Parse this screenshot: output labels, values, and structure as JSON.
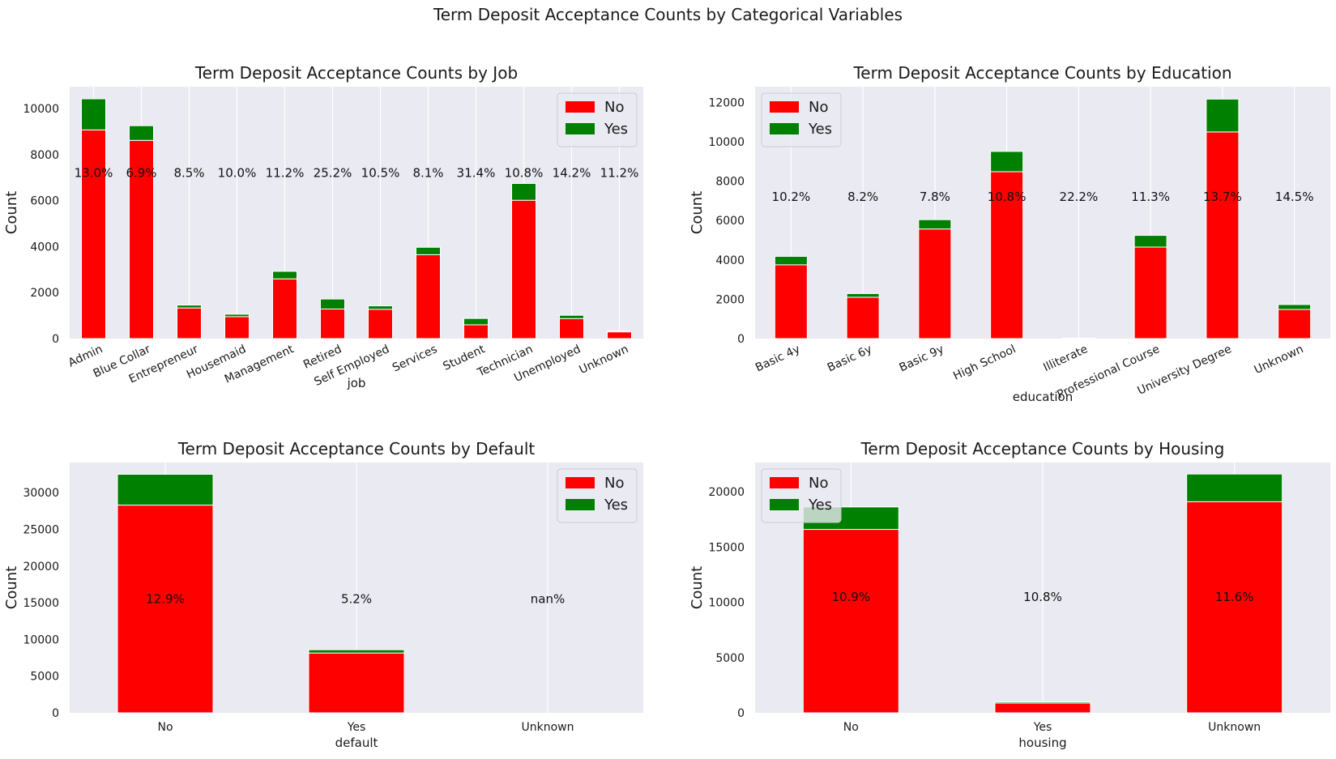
{
  "suptitle": "Term Deposit Acceptance Counts by Categorical Variables",
  "colors": {
    "no": "#ff0000",
    "yes": "#008000",
    "axes_bg": "#eaeaf2",
    "grid": "#ffffff"
  },
  "chart_data": [
    {
      "type": "bar",
      "stacked": true,
      "title": "Term Deposit Acceptance Counts by Job",
      "xlabel": "job",
      "ylabel": "Count",
      "categories": [
        "Admin",
        "Blue Collar",
        "Entrepreneur",
        "Housemaid",
        "Management",
        "Retired",
        "Self Employed",
        "Services",
        "Student",
        "Technician",
        "Unemployed",
        "Unknown"
      ],
      "series": [
        {
          "name": "No",
          "values": [
            9070,
            8616,
            1332,
            954,
            2596,
            1286,
            1272,
            3646,
            600,
            6013,
            870,
            293
          ]
        },
        {
          "name": "Yes",
          "values": [
            1352,
            638,
            124,
            106,
            328,
            434,
            149,
            323,
            275,
            730,
            144,
            37
          ]
        }
      ],
      "annotations": [
        "13.0%",
        "6.9%",
        "8.5%",
        "10.0%",
        "11.2%",
        "25.2%",
        "10.5%",
        "8.1%",
        "31.4%",
        "10.8%",
        "14.2%",
        "11.2%"
      ],
      "annotation_y": 7200,
      "yticks": [
        0,
        2000,
        4000,
        6000,
        8000,
        10000
      ],
      "ylim": [
        0,
        10950
      ],
      "xtick_rotation": -25,
      "legend": "top-right",
      "grid": true
    },
    {
      "type": "bar",
      "stacked": true,
      "title": "Term Deposit Acceptance Counts by Education",
      "xlabel": "education",
      "ylabel": "Count",
      "categories": [
        "Basic 4y",
        "Basic 6y",
        "Basic 9y",
        "High School",
        "Illiterate",
        "Professional Course",
        "University Degree",
        "Unknown"
      ],
      "series": [
        {
          "name": "No",
          "values": [
            3750,
            2100,
            5570,
            8480,
            14,
            4650,
            10500,
            1480
          ]
        },
        {
          "name": "Yes",
          "values": [
            428,
            188,
            473,
            1031,
            4,
            595,
            1670,
            251
          ]
        }
      ],
      "annotations": [
        "10.2%",
        "8.2%",
        "7.8%",
        "10.8%",
        "22.2%",
        "11.3%",
        "13.7%",
        "14.5%"
      ],
      "annotation_y": 7200,
      "yticks": [
        0,
        2000,
        4000,
        6000,
        8000,
        10000,
        12000
      ],
      "ylim": [
        0,
        12800
      ],
      "xtick_rotation": -25,
      "legend": "top-left",
      "grid": true
    },
    {
      "type": "bar",
      "stacked": true,
      "title": "Term Deposit Acceptance Counts by Default",
      "xlabel": "default",
      "ylabel": "Count",
      "categories": [
        "No",
        "Yes",
        "Unknown"
      ],
      "series": [
        {
          "name": "No",
          "values": [
            28300,
            8150,
            0
          ]
        },
        {
          "name": "Yes",
          "values": [
            4200,
            440,
            0
          ]
        }
      ],
      "annotations": [
        "12.9%",
        "5.2%",
        "nan%"
      ],
      "annotation_y": 15500,
      "yticks": [
        0,
        5000,
        10000,
        15000,
        20000,
        25000,
        30000
      ],
      "ylim": [
        0,
        34100
      ],
      "xtick_rotation": 0,
      "legend": "top-right",
      "grid": true
    },
    {
      "type": "bar",
      "stacked": true,
      "title": "Term Deposit Acceptance Counts by Housing",
      "xlabel": "housing",
      "ylabel": "Count",
      "categories": [
        "No",
        "Yes",
        "Unknown"
      ],
      "series": [
        {
          "name": "No",
          "values": [
            16600,
            880,
            19100
          ]
        },
        {
          "name": "Yes",
          "values": [
            2030,
            107,
            2510
          ]
        }
      ],
      "annotations": [
        "10.9%",
        "10.8%",
        "11.6%"
      ],
      "annotation_y": 10500,
      "yticks": [
        0,
        5000,
        10000,
        15000,
        20000
      ],
      "ylim": [
        0,
        22650
      ],
      "xtick_rotation": 0,
      "legend": "top-left",
      "grid": true
    }
  ]
}
